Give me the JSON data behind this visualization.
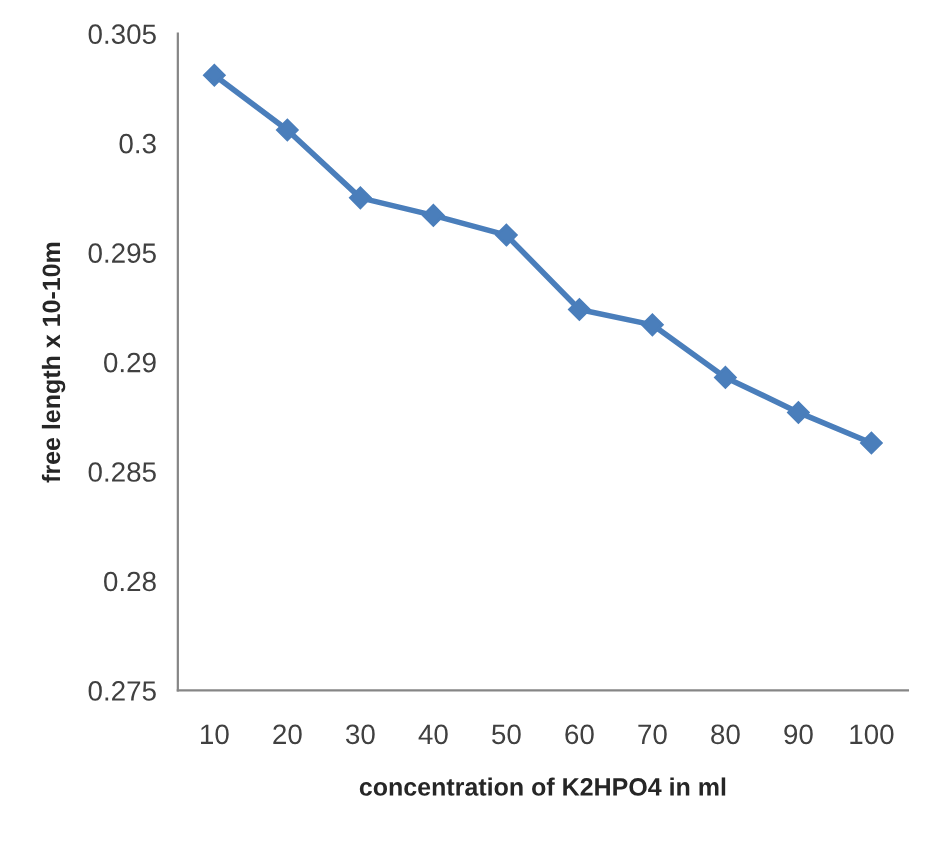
{
  "chart_data": {
    "type": "line",
    "xlabel": "concentration of K2HPO4 in ml",
    "ylabel": "free length x 10-10m",
    "categories": [
      "10",
      "20",
      "30",
      "40",
      "50",
      "60",
      "70",
      "80",
      "90",
      "100"
    ],
    "series": [
      {
        "color": "#4a7ebb",
        "values": [
          0.3031,
          0.3006,
          0.2975,
          0.2967,
          0.2958,
          0.2924,
          0.2917,
          0.2893,
          0.2877,
          0.2863
        ]
      }
    ],
    "ylim": [
      0.275,
      0.305
    ],
    "yticks": [
      0.275,
      0.28,
      0.285,
      0.29,
      0.295,
      0.3,
      0.305
    ],
    "grid": false,
    "legend": false,
    "marker": "diamond",
    "line_style": "solid"
  }
}
